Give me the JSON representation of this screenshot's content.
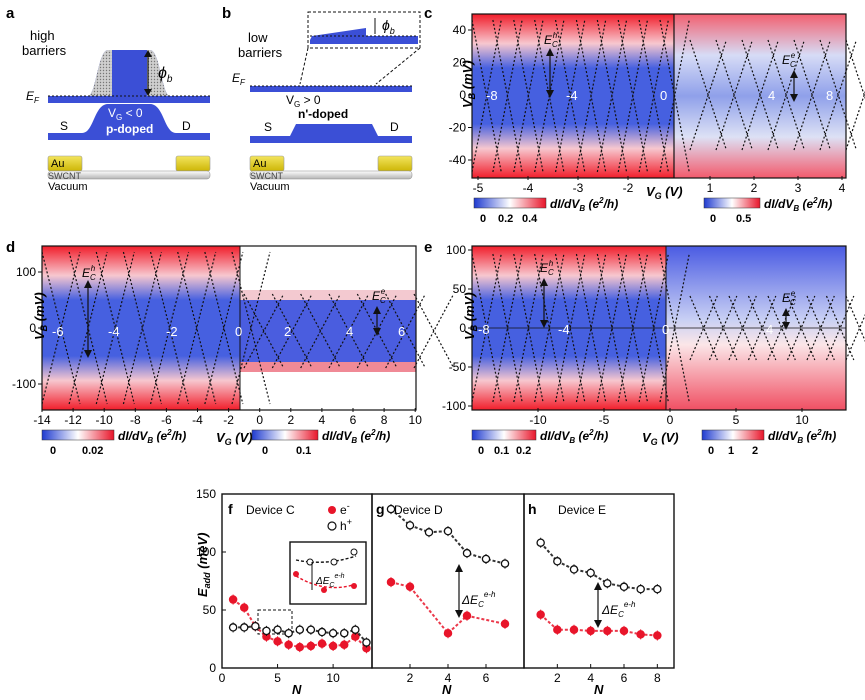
{
  "panels": {
    "a": {
      "letter": "a",
      "title_line1": "high",
      "title_line2": "barriers",
      "phi": "ϕ",
      "phi_sub": "b",
      "ef": "E",
      "ef_sub": "F",
      "vg": "V",
      "vg_sub": "G",
      "vg_rel": " < 0",
      "doping": "p-doped",
      "source": "S",
      "drain": "D",
      "au": "Au",
      "tube": "SWCNT",
      "vacuum": "Vacuum"
    },
    "b": {
      "letter": "b",
      "title_line1": "low",
      "title_line2": "barriers",
      "phi": "ϕ",
      "phi_sub": "b",
      "ef": "E",
      "ef_sub": "F",
      "vg": "V",
      "vg_sub": "G",
      "vg_rel": " > 0",
      "doping": "n'-doped",
      "source": "S",
      "drain": "D",
      "au": "Au",
      "tube": "SWCNT",
      "vacuum": "Vacuum"
    },
    "c": {
      "letter": "c",
      "ylabel": "V",
      "ylabel_sub": "B",
      "ylabel_unit": " (mV)",
      "yticks": [
        "40",
        "20",
        "0",
        "-20",
        "-40"
      ],
      "xticks_left": [
        "-5",
        "-4",
        "-3",
        "-2"
      ],
      "xticks_right": [
        "1",
        "2",
        "3",
        "4"
      ],
      "xlabel": "V",
      "xlabel_sub": "G",
      "xlabel_unit": " (V)",
      "in_labels": [
        "-8",
        "-4",
        "0",
        "4",
        "8"
      ],
      "ech": "E",
      "ech_sub": "C",
      "ech_sup": "h",
      "ece": "E",
      "ece_sub": "C",
      "ece_sup": "e",
      "cbar_left_ticks": [
        "0",
        "0.2",
        "0.4"
      ],
      "cbar_right_ticks": [
        "0",
        "0.5"
      ],
      "cbar_label": "dI/dV",
      "cbar_label_sub": "B",
      "cbar_label_unit": " (e",
      "cbar_label_sup": "2",
      "cbar_label_end": "/h)"
    },
    "d": {
      "letter": "d",
      "ylabel": "V",
      "ylabel_sub": "B",
      "ylabel_unit": " (mV)",
      "yticks": [
        "100",
        "0",
        "-100"
      ],
      "xticks": [
        "-14",
        "-12",
        "-10",
        "-8",
        "-6",
        "-4",
        "-2",
        "0",
        "2",
        "4",
        "6",
        "8",
        "10"
      ],
      "xlabel": "V",
      "xlabel_sub": "G",
      "xlabel_unit": " (V)",
      "in_labels": [
        "-6",
        "-4",
        "-2",
        "0",
        "2",
        "4",
        "6"
      ],
      "ech": "E",
      "ech_sub": "C",
      "ech_sup": "h",
      "ece": "E",
      "ece_sub": "C",
      "ece_sup": "e",
      "cbar_left_ticks": [
        "0",
        "0.02"
      ],
      "cbar_right_ticks": [
        "0",
        "0.1"
      ],
      "cbar_label": "dI/dV",
      "cbar_label_sub": "B",
      "cbar_label_unit": " (e",
      "cbar_label_sup": "2",
      "cbar_label_end": "/h)"
    },
    "e": {
      "letter": "e",
      "ylabel": "V",
      "ylabel_sub": "B",
      "ylabel_unit": " (mV)",
      "yticks": [
        "100",
        "50",
        "0",
        "-50",
        "-100"
      ],
      "xticks": [
        "-10",
        "-5",
        "0",
        "5",
        "10"
      ],
      "xlabel": "V",
      "xlabel_sub": "G",
      "xlabel_unit": " (V)",
      "in_labels": [
        "-8",
        "-4",
        "0",
        "4"
      ],
      "ech": "E",
      "ech_sub": "C",
      "ech_sup": "h",
      "ece": "E",
      "ece_sub": "C",
      "ece_sup": "e",
      "cbar_left_ticks": [
        "0",
        "0.1",
        "0.2"
      ],
      "cbar_right_ticks": [
        "0",
        "1",
        "2"
      ],
      "cbar_label": "dI/dV",
      "cbar_label_sub": "B",
      "cbar_label_unit": " (e",
      "cbar_label_sup": "2",
      "cbar_label_end": "/h)"
    },
    "f": {
      "letter": "f",
      "title": "Device C",
      "legend_e": "e",
      "legend_e_sup": "-",
      "legend_h": "h",
      "legend_h_sup": "+",
      "delta": "ΔE",
      "delta_sub": "C",
      "delta_sup": "e-h"
    },
    "g": {
      "letter": "g",
      "title": "Device D",
      "delta": "ΔE",
      "delta_sub": "C",
      "delta_sup": "e-h"
    },
    "h": {
      "letter": "h",
      "title": "Device E",
      "delta": "ΔE",
      "delta_sub": "C",
      "delta_sup": "e-h"
    }
  },
  "addition_axes": {
    "ylabel": "E",
    "ylabel_sub": "add",
    "ylabel_unit": " (meV)",
    "xlabel": "N",
    "yticks": [
      "150",
      "100",
      "50",
      "0"
    ],
    "xticks_f": [
      "0",
      "5",
      "10"
    ],
    "xticks_g": [
      "2",
      "4",
      "6"
    ],
    "xticks_h": [
      "2",
      "4",
      "6",
      "8"
    ]
  },
  "colors": {
    "blue": "#3b4fd6",
    "red": "#e8152a",
    "black": "#111111",
    "gold": "#e4cf12"
  },
  "chart_data": [
    {
      "type": "scatter",
      "title": "Device C",
      "xlabel": "N",
      "ylabel": "E_add (meV)",
      "xlim": [
        0,
        13.5
      ],
      "ylim": [
        0,
        150
      ],
      "series": [
        {
          "name": "e-",
          "x": [
            1,
            2,
            3,
            4,
            5,
            6,
            7,
            8,
            9,
            10,
            11,
            12,
            13
          ],
          "values": [
            59,
            52,
            36,
            27,
            23,
            20,
            18,
            19,
            21,
            19,
            20,
            27,
            17
          ]
        },
        {
          "name": "h+",
          "x": [
            1,
            2,
            3,
            4,
            5,
            6,
            7,
            8,
            9,
            10,
            11,
            12,
            13
          ],
          "values": [
            35,
            35,
            36,
            32,
            33,
            30,
            33,
            33,
            31,
            30,
            30,
            33,
            22
          ]
        }
      ]
    },
    {
      "type": "scatter",
      "title": "Device D",
      "xlabel": "N",
      "ylabel": "E_add (meV)",
      "xlim": [
        0,
        8
      ],
      "ylim": [
        0,
        150
      ],
      "series": [
        {
          "name": "e-",
          "x": [
            1,
            2,
            4,
            5,
            7
          ],
          "values": [
            74,
            70,
            30,
            45,
            38
          ]
        },
        {
          "name": "h+",
          "x": [
            1,
            2,
            3,
            4,
            5,
            6,
            7
          ],
          "values": [
            137,
            123,
            117,
            118,
            99,
            94,
            90
          ]
        }
      ]
    },
    {
      "type": "scatter",
      "title": "Device E",
      "xlabel": "N",
      "ylabel": "E_add (meV)",
      "xlim": [
        0,
        9
      ],
      "ylim": [
        0,
        150
      ],
      "series": [
        {
          "name": "e-",
          "x": [
            1,
            2,
            3,
            4,
            5,
            6,
            7,
            8
          ],
          "values": [
            46,
            33,
            33,
            32,
            32,
            32,
            29,
            28
          ]
        },
        {
          "name": "h+",
          "x": [
            1,
            2,
            3,
            4,
            5,
            6,
            7,
            8
          ],
          "values": [
            108,
            92,
            85,
            82,
            73,
            70,
            68,
            68
          ]
        }
      ]
    }
  ]
}
